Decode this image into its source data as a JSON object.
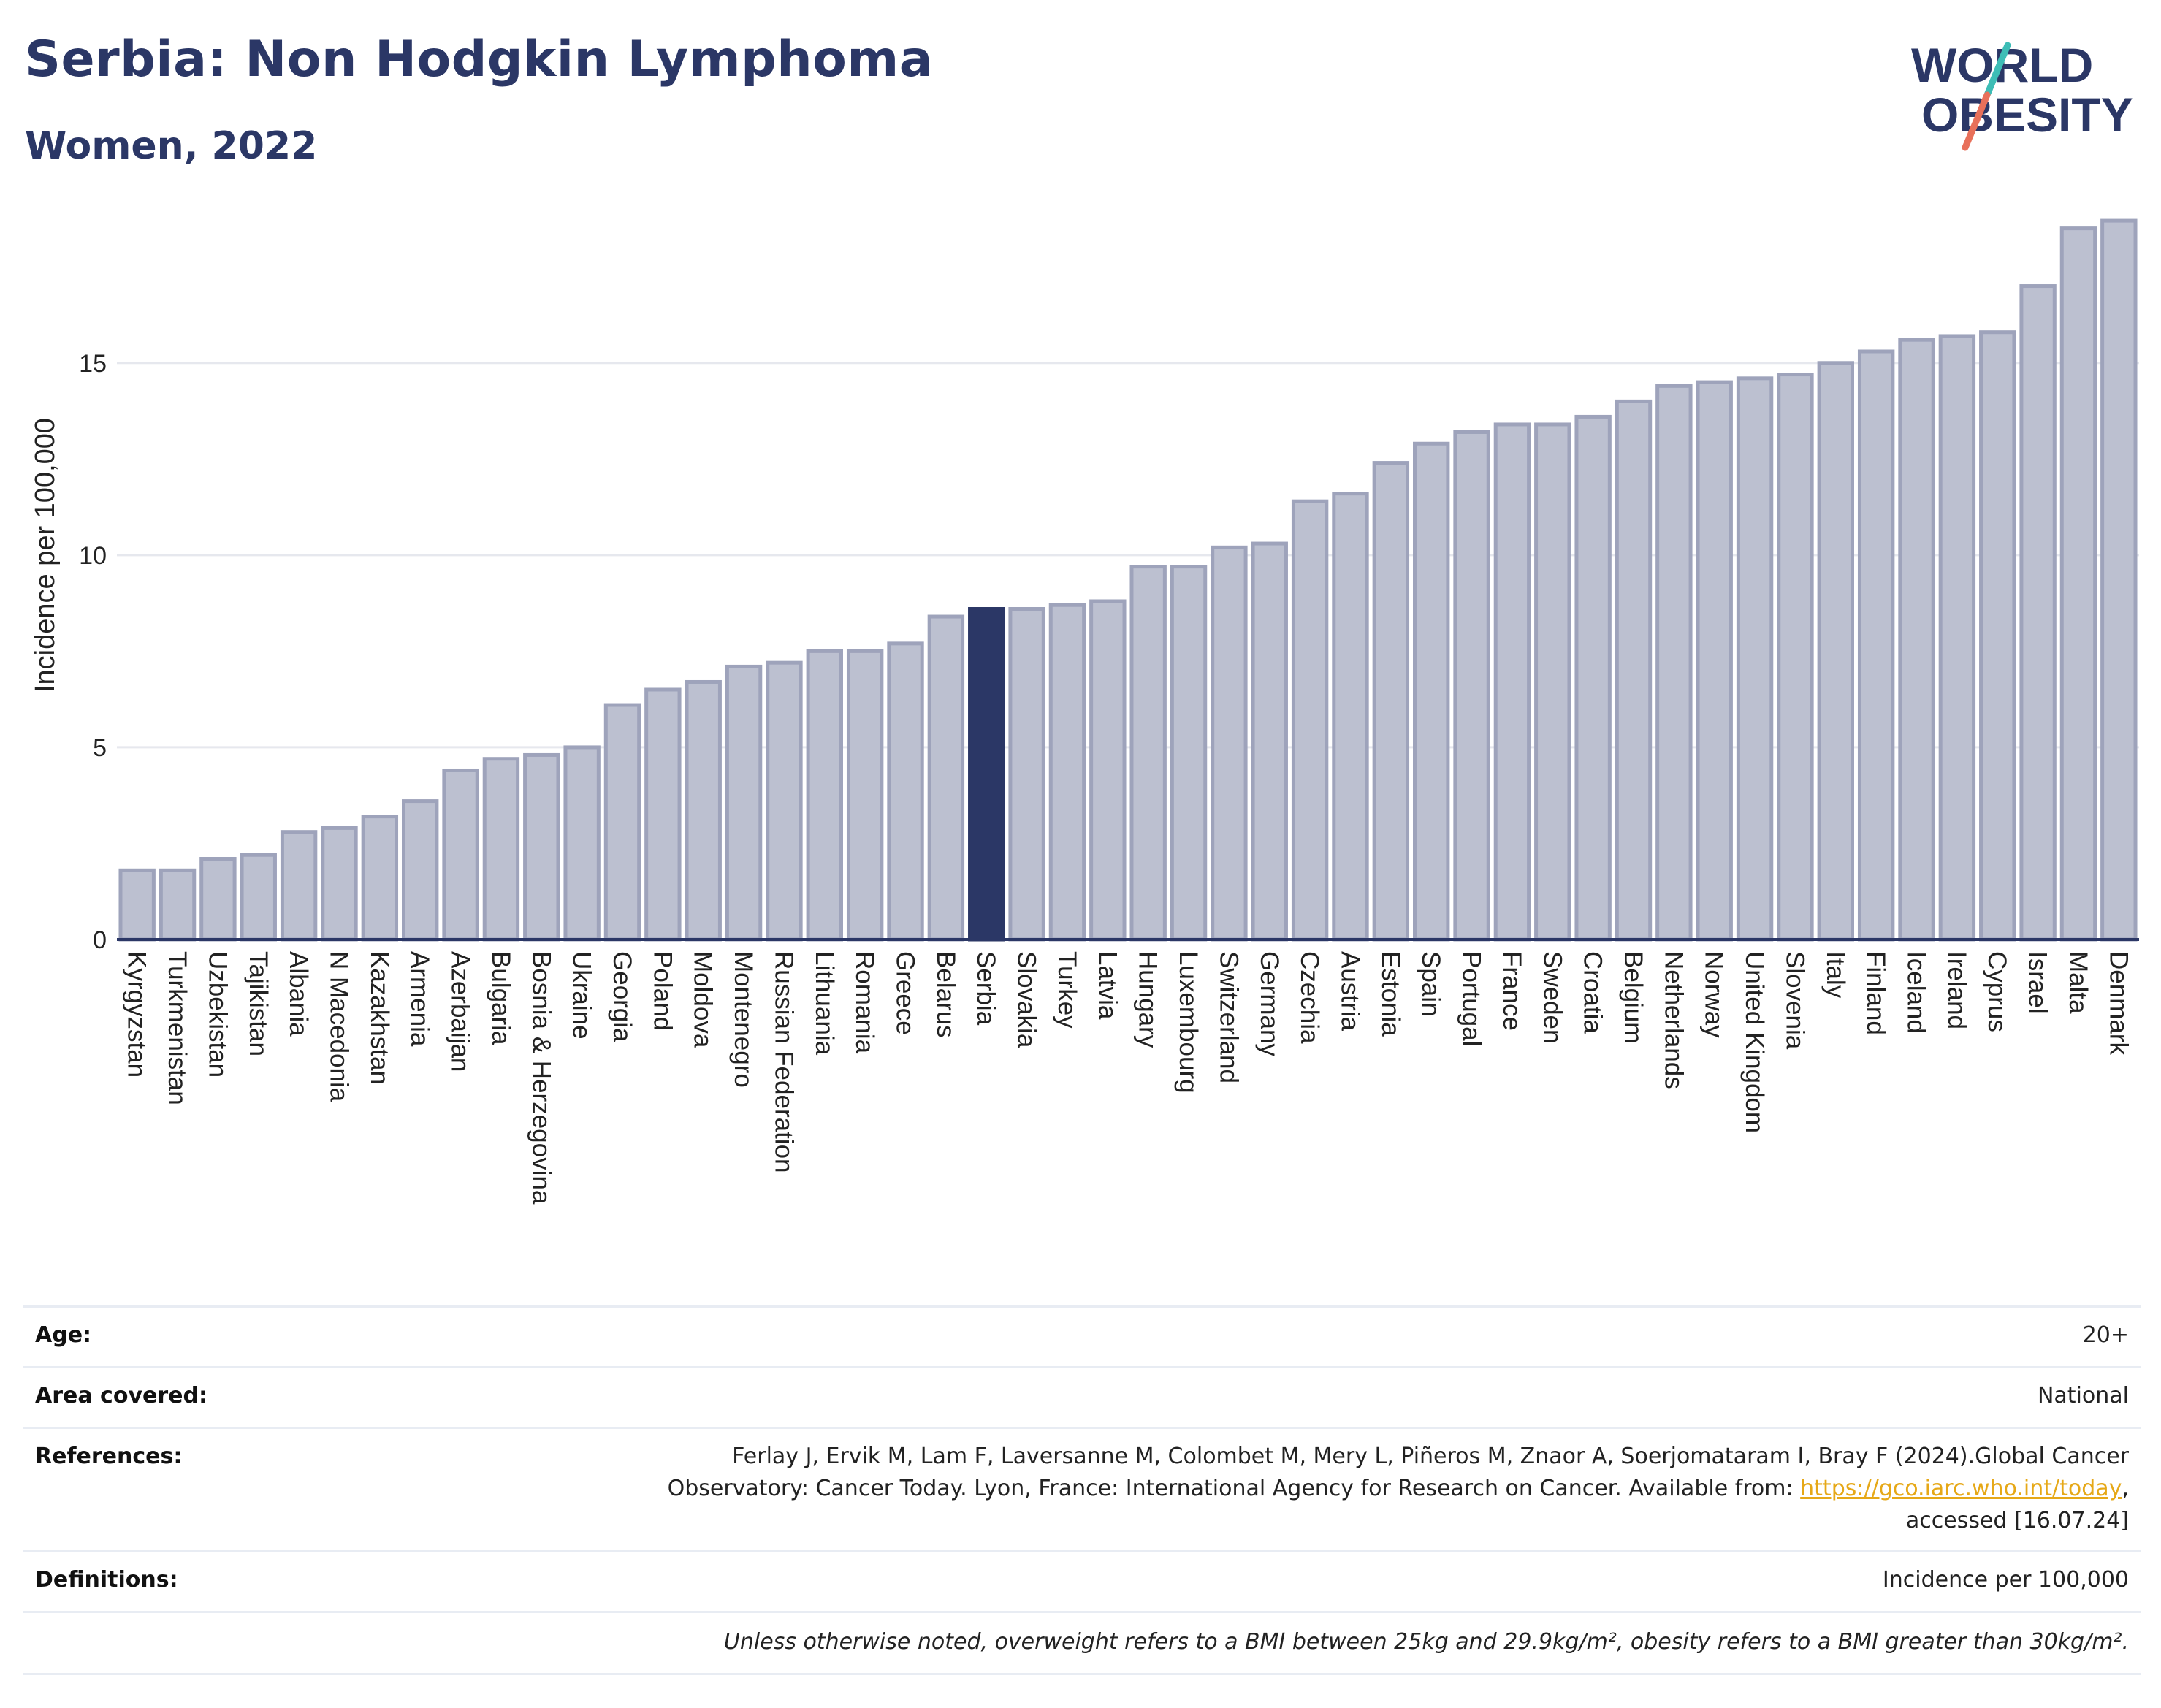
{
  "header": {
    "title": "Serbia: Non Hodgkin Lymphoma",
    "subtitle": "Women, 2022"
  },
  "logo": {
    "line1": "WORLD",
    "line2": "OBESITY",
    "brand_color": "#2b3766",
    "slash_colors": [
      "#3dbdb6",
      "#e8705a"
    ]
  },
  "chart_data": {
    "type": "bar",
    "ylabel": "Incidence per 100,000",
    "ylim": [
      0,
      19.5
    ],
    "yticks": [
      0,
      5,
      10,
      15
    ],
    "grid": true,
    "highlight": "Serbia",
    "colors": {
      "bar": "#bcc0d0",
      "bar_edge": "#9ea3bb",
      "highlight": "#2b3766",
      "grid": "#e6e8ee"
    },
    "categories": [
      "Kyrgyzstan",
      "Turkmenistan",
      "Uzbekistan",
      "Tajikistan",
      "Albania",
      "N Macedonia",
      "Kazakhstan",
      "Armenia",
      "Azerbaijan",
      "Bulgaria",
      "Bosnia & Herzegovina",
      "Ukraine",
      "Georgia",
      "Poland",
      "Moldova",
      "Montenegro",
      "Russian Federation",
      "Lithuania",
      "Romania",
      "Greece",
      "Belarus",
      "Serbia",
      "Slovakia",
      "Turkey",
      "Latvia",
      "Hungary",
      "Luxembourg",
      "Switzerland",
      "Germany",
      "Czechia",
      "Austria",
      "Estonia",
      "Spain",
      "Portugal",
      "France",
      "Sweden",
      "Croatia",
      "Belgium",
      "Netherlands",
      "Norway",
      "United Kingdom",
      "Slovenia",
      "Italy",
      "Finland",
      "Iceland",
      "Ireland",
      "Cyprus",
      "Israel",
      "Malta",
      "Denmark"
    ],
    "values": [
      1.8,
      1.8,
      2.1,
      2.2,
      2.8,
      2.9,
      3.2,
      3.6,
      4.4,
      4.7,
      4.8,
      5.0,
      6.1,
      6.5,
      6.7,
      7.1,
      7.2,
      7.5,
      7.5,
      7.7,
      8.4,
      8.6,
      8.6,
      8.7,
      8.8,
      9.7,
      9.7,
      10.2,
      10.3,
      11.4,
      11.6,
      12.4,
      12.9,
      13.2,
      13.4,
      13.4,
      13.6,
      14.0,
      14.4,
      14.5,
      14.6,
      14.7,
      15.0,
      15.3,
      15.6,
      15.7,
      15.8,
      17.0,
      18.5,
      18.7
    ]
  },
  "meta": {
    "age_label": "Age:",
    "age_value": "20+",
    "area_label": "Area covered:",
    "area_value": "National",
    "ref_label": "References:",
    "ref_line1": "Ferlay J, Ervik M, Lam F, Laversanne M, Colombet M, Mery L, Piñeros M, Znaor A, Soerjomataram I, Bray F (2024).Global Cancer",
    "ref_line2_pre": "Observatory: Cancer Today. Lyon, France: International Agency for Research on Cancer. Available from: ",
    "ref_link": "https://gco.iarc.who.int/today",
    "ref_line2_post": ",",
    "ref_line3": "accessed [16.07.24]",
    "def_label": "Definitions:",
    "def_value": "Incidence per 100,000",
    "note": "Unless otherwise noted, overweight refers to a BMI between 25kg and 29.9kg/m², obesity refers to a BMI greater than 30kg/m²."
  }
}
